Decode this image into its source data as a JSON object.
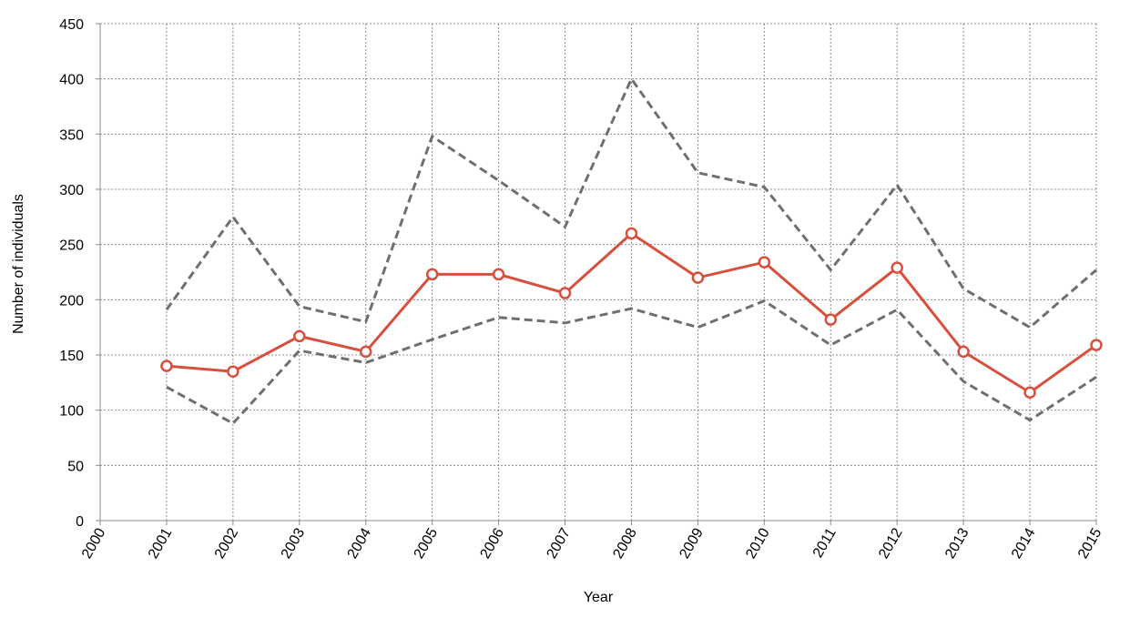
{
  "chart_data": {
    "type": "line",
    "title": "",
    "xlabel": "Year",
    "ylabel": "Number of individuals",
    "xlim": [
      2000,
      2015
    ],
    "ylim": [
      0,
      450
    ],
    "x_ticks": [
      "2000",
      "2001",
      "2002",
      "2003",
      "2004",
      "2005",
      "2006",
      "2007",
      "2008",
      "2009",
      "2010",
      "2011",
      "2012",
      "2013",
      "2014",
      "2015"
    ],
    "y_ticks": [
      "0",
      "50",
      "100",
      "150",
      "200",
      "250",
      "300",
      "350",
      "400",
      "450"
    ],
    "grid": true,
    "legend": "none",
    "x": [
      2001,
      2002,
      2003,
      2004,
      2005,
      2006,
      2007,
      2008,
      2009,
      2010,
      2011,
      2012,
      2013,
      2014,
      2015
    ],
    "series": [
      {
        "style": "solid-markers",
        "color": "#d94f3d",
        "values": [
          140,
          135,
          167,
          153,
          223,
          223,
          206,
          260,
          220,
          234,
          182,
          229,
          153,
          116,
          159
        ]
      },
      {
        "style": "dashed",
        "color": "#6f6f6f",
        "values": [
          191,
          275,
          194,
          180,
          348,
          308,
          266,
          400,
          315,
          302,
          227,
          304,
          210,
          175,
          227
        ]
      },
      {
        "style": "dashed",
        "color": "#6f6f6f",
        "values": [
          121,
          88,
          154,
          143,
          164,
          184,
          179,
          192,
          175,
          199,
          159,
          191,
          126,
          91,
          130
        ]
      }
    ]
  }
}
